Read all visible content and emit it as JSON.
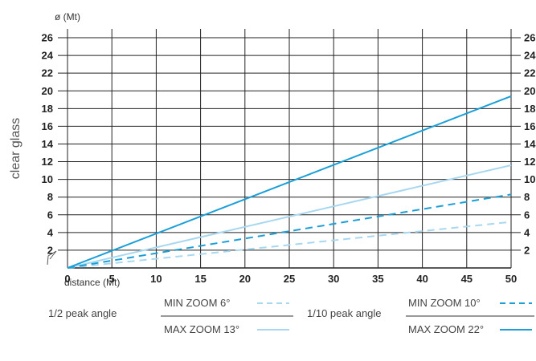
{
  "chart_data": {
    "type": "line",
    "side_label": "clear glass",
    "ylabel": "ø (Mt)",
    "xlabel": "distance (Mt)",
    "x_ticks": [
      0,
      5,
      10,
      15,
      20,
      25,
      30,
      35,
      40,
      45,
      50
    ],
    "y_ticks": [
      2,
      4,
      6,
      8,
      10,
      12,
      14,
      16,
      18,
      20,
      22,
      24,
      26
    ],
    "xlim": [
      0,
      50
    ],
    "ylim": [
      0,
      27
    ],
    "grid": true,
    "series": [
      {
        "name": "MIN ZOOM 6°",
        "group": "1/2 peak angle",
        "color": "#a8d8f0",
        "dash": "dashed",
        "x": [
          0,
          50
        ],
        "y": [
          0,
          5.2
        ]
      },
      {
        "name": "MAX ZOOM 13°",
        "group": "1/2 peak angle",
        "color": "#a8d8f0",
        "dash": "solid",
        "x": [
          0,
          50
        ],
        "y": [
          0,
          11.6
        ]
      },
      {
        "name": "MIN ZOOM 10°",
        "group": "1/10 peak angle",
        "color": "#1a9fd8",
        "dash": "dashed",
        "x": [
          0,
          50
        ],
        "y": [
          0,
          8.3
        ]
      },
      {
        "name": "MAX ZOOM 22°",
        "group": "1/10 peak angle",
        "color": "#1a9fd8",
        "dash": "solid",
        "x": [
          0,
          50
        ],
        "y": [
          0,
          19.4
        ]
      }
    ],
    "legend": {
      "placement": "bottom",
      "groups": [
        "1/2 peak angle",
        "1/10 peak angle"
      ]
    }
  }
}
